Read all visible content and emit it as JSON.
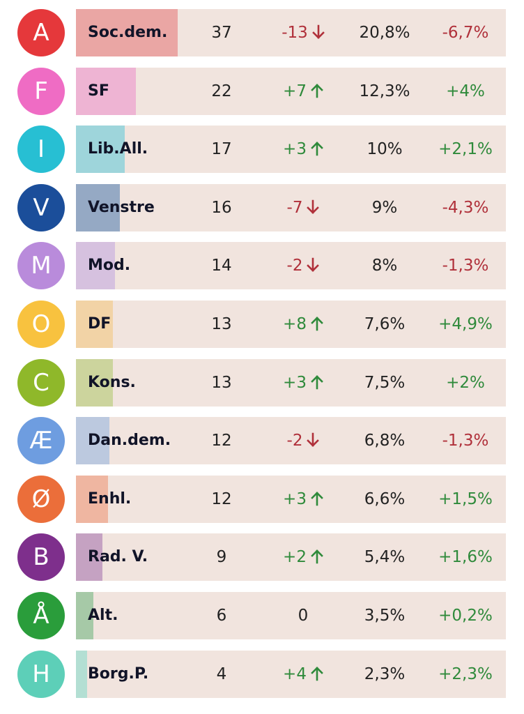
{
  "chart_data": {
    "type": "table",
    "columns": [
      "letter",
      "party",
      "seats",
      "seat_change",
      "vote_share",
      "vote_share_change"
    ],
    "rows": [
      {
        "letter": "A",
        "name": "Soc.dem.",
        "seats": "37",
        "seats_change": "-13",
        "seat_direction": "down",
        "pct": "20,8%",
        "pct_change": "-6,7%",
        "vote_share": 20.8,
        "badge_color": "#e5383b",
        "bar_color": "#eaa6a4"
      },
      {
        "letter": "F",
        "name": "SF",
        "seats": "22",
        "seats_change": "+7",
        "seat_direction": "up",
        "pct": "12,3%",
        "pct_change": "+4%",
        "vote_share": 12.3,
        "badge_color": "#ef6cc4",
        "bar_color": "#eeb4d3"
      },
      {
        "letter": "I",
        "name": "Lib.All.",
        "seats": "17",
        "seats_change": "+3",
        "seat_direction": "up",
        "pct": "10%",
        "pct_change": "+2,1%",
        "vote_share": 10.0,
        "badge_color": "#27bfd3",
        "bar_color": "#9ed5db"
      },
      {
        "letter": "V",
        "name": "Venstre",
        "seats": "16",
        "seats_change": "-7",
        "seat_direction": "down",
        "pct": "9%",
        "pct_change": "-4,3%",
        "vote_share": 9.0,
        "badge_color": "#1b4e9a",
        "bar_color": "#95a9c4"
      },
      {
        "letter": "M",
        "name": "Mod.",
        "seats": "14",
        "seats_change": "-2",
        "seat_direction": "down",
        "pct": "8%",
        "pct_change": "-1,3%",
        "vote_share": 8.0,
        "badge_color": "#b98bdb",
        "bar_color": "#d6c1df"
      },
      {
        "letter": "O",
        "name": "DF",
        "seats": "13",
        "seats_change": "+8",
        "seat_direction": "up",
        "pct": "7,6%",
        "pct_change": "+4,9%",
        "vote_share": 7.6,
        "badge_color": "#f8c23f",
        "bar_color": "#f2d3a6"
      },
      {
        "letter": "C",
        "name": "Kons.",
        "seats": "13",
        "seats_change": "+3",
        "seat_direction": "up",
        "pct": "7,5%",
        "pct_change": "+2%",
        "vote_share": 7.5,
        "badge_color": "#8fb82a",
        "bar_color": "#ccd49d"
      },
      {
        "letter": "Æ",
        "name": "Dan.dem.",
        "seats": "12",
        "seats_change": "-2",
        "seat_direction": "down",
        "pct": "6,8%",
        "pct_change": "-1,3%",
        "vote_share": 6.8,
        "badge_color": "#6e9de0",
        "bar_color": "#bcc9df"
      },
      {
        "letter": "Ø",
        "name": "Enhl.",
        "seats": "12",
        "seats_change": "+3",
        "seat_direction": "up",
        "pct": "6,6%",
        "pct_change": "+1,5%",
        "vote_share": 6.6,
        "badge_color": "#eb6e3a",
        "bar_color": "#efb6a1"
      },
      {
        "letter": "B",
        "name": "Rad. V.",
        "seats": "9",
        "seats_change": "+2",
        "seat_direction": "up",
        "pct": "5,4%",
        "pct_change": "+1,6%",
        "vote_share": 5.4,
        "badge_color": "#7e2f8c",
        "bar_color": "#c5a2c2"
      },
      {
        "letter": "Å",
        "name": "Alt.",
        "seats": "6",
        "seats_change": "0",
        "seat_direction": "none",
        "pct": "3,5%",
        "pct_change": "+0,2%",
        "vote_share": 3.5,
        "badge_color": "#2a9d3b",
        "bar_color": "#a6c9a7"
      },
      {
        "letter": "H",
        "name": "Borg.P.",
        "seats": "4",
        "seats_change": "+4",
        "seat_direction": "up",
        "pct": "2,3%",
        "pct_change": "+2,3%",
        "vote_share": 2.3,
        "badge_color": "#5dcfb8",
        "bar_color": "#b3dfd3"
      }
    ],
    "bar_max_share": 20.8,
    "colors": {
      "row_background": "#f1e4de",
      "positive": "#2f8a3b",
      "negative": "#b0303a"
    }
  }
}
